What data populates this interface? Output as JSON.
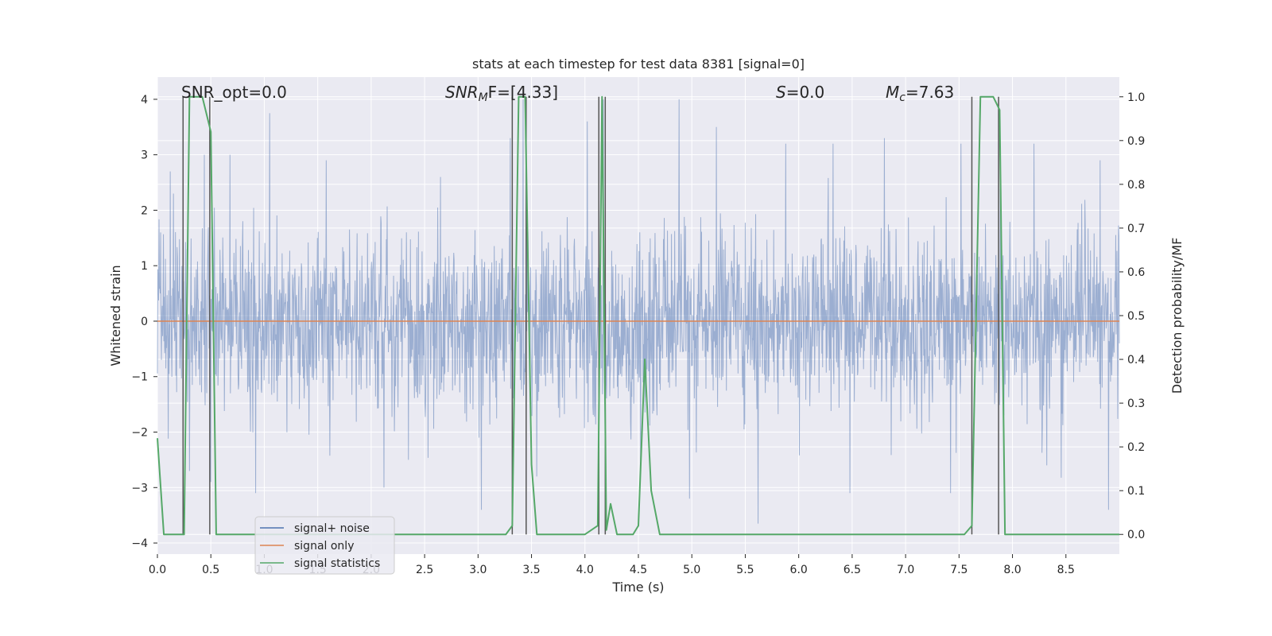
{
  "chart_data": {
    "type": "line",
    "title": "stats at each timestep for test data 8381 [signal=0]",
    "xlabel": "Time (s)",
    "ylabel": "Whitened strain",
    "y2label": "Detection probability/MF",
    "xlim": [
      0.0,
      9.0
    ],
    "ylim": [
      -4.2,
      4.4
    ],
    "y2lim": [
      -0.045,
      1.045
    ],
    "xticks": [
      "0.0",
      "0.5",
      "1.0",
      "1.5",
      "2.0",
      "2.5",
      "3.0",
      "3.5",
      "4.0",
      "4.5",
      "5.0",
      "5.5",
      "6.0",
      "6.5",
      "7.0",
      "7.5",
      "8.0",
      "8.5"
    ],
    "yticks": [
      "4",
      "3",
      "2",
      "1",
      "0",
      "−1",
      "−2",
      "−3",
      "−4"
    ],
    "y2ticks": [
      "1.0",
      "0.9",
      "0.8",
      "0.7",
      "0.6",
      "0.5",
      "0.4",
      "0.3",
      "0.2",
      "0.1",
      "0.0"
    ],
    "grid": true,
    "legend_position": "lower-left",
    "colors": {
      "background": "#eaeaf2",
      "grid": "#ffffff",
      "signal_noise": "#4c72b0",
      "signal_only": "#dd8452",
      "statistics": "#55a868",
      "vlines": "#555555"
    },
    "annotations": {
      "snr_opt": "SNR_opt=0.0",
      "snr_mf": "SNR",
      "snr_mf_sub": "M",
      "snr_mf_rest": "F=[4.33]",
      "s_name": "S",
      "s_value": "=0.0",
      "mc_name": "M",
      "mc_sub": "c",
      "mc_value": "=7.63"
    },
    "series": [
      {
        "name": "signal+ noise",
        "kind": "noise",
        "color": "#4c72b0",
        "core_std": 0.8,
        "spike_peaks": [
          {
            "x": 0.03,
            "y": 1.6
          },
          {
            "x": 0.12,
            "y": 2.7
          },
          {
            "x": 0.15,
            "y": 2.3
          },
          {
            "x": 0.44,
            "y": 3.0
          },
          {
            "x": 0.68,
            "y": 3.0
          },
          {
            "x": 1.05,
            "y": 3.75
          },
          {
            "x": 1.58,
            "y": 2.9
          },
          {
            "x": 2.65,
            "y": 2.6
          },
          {
            "x": 3.3,
            "y": 3.3
          },
          {
            "x": 3.42,
            "y": 4.0
          },
          {
            "x": 4.02,
            "y": 3.6
          },
          {
            "x": 4.17,
            "y": 4.0
          },
          {
            "x": 4.88,
            "y": 4.0
          },
          {
            "x": 5.23,
            "y": 3.5
          },
          {
            "x": 5.88,
            "y": 3.2
          },
          {
            "x": 6.32,
            "y": 3.2
          },
          {
            "x": 6.8,
            "y": 3.3
          },
          {
            "x": 7.52,
            "y": 3.2
          },
          {
            "x": 8.2,
            "y": 3.2
          },
          {
            "x": 8.82,
            "y": 2.9
          },
          {
            "x": 0.3,
            "y": -2.7
          },
          {
            "x": 0.5,
            "y": -2.9
          },
          {
            "x": 0.92,
            "y": -3.1
          },
          {
            "x": 2.12,
            "y": -3.0
          },
          {
            "x": 2.35,
            "y": -2.5
          },
          {
            "x": 3.03,
            "y": -3.4
          },
          {
            "x": 3.55,
            "y": -2.8
          },
          {
            "x": 4.52,
            "y": -2.7
          },
          {
            "x": 4.98,
            "y": -3.2
          },
          {
            "x": 5.62,
            "y": -3.65
          },
          {
            "x": 6.48,
            "y": -3.1
          },
          {
            "x": 7.42,
            "y": -3.1
          },
          {
            "x": 8.32,
            "y": -2.6
          },
          {
            "x": 8.9,
            "y": -3.4
          }
        ]
      },
      {
        "name": "signal only",
        "kind": "flat",
        "color": "#dd8452",
        "x": [
          0.0,
          9.0
        ],
        "y": [
          0.0,
          0.0
        ]
      },
      {
        "name": "signal statistics",
        "kind": "secondary",
        "color": "#55a868",
        "x": [
          0.0,
          0.06,
          0.14,
          0.25,
          0.3,
          0.42,
          0.5,
          0.55,
          1.0,
          2.0,
          3.0,
          3.26,
          3.32,
          3.38,
          3.44,
          3.5,
          3.55,
          3.6,
          4.0,
          4.12,
          4.16,
          4.2,
          4.24,
          4.3,
          4.36,
          4.45,
          4.5,
          4.56,
          4.62,
          4.7,
          5.0,
          6.0,
          7.0,
          7.55,
          7.62,
          7.7,
          7.82,
          7.88,
          7.93,
          8.5,
          9.0
        ],
        "y": [
          0.22,
          0.0,
          0.0,
          0.0,
          1.0,
          1.0,
          0.92,
          0.0,
          0.0,
          0.0,
          0.0,
          0.0,
          0.02,
          1.0,
          1.0,
          0.16,
          0.0,
          0.0,
          0.0,
          0.02,
          1.0,
          0.01,
          0.07,
          0.0,
          0.0,
          0.0,
          0.02,
          0.4,
          0.1,
          0.0,
          0.0,
          0.0,
          0.0,
          0.0,
          0.02,
          1.0,
          1.0,
          0.97,
          0.0,
          0.0,
          0.0
        ]
      }
    ],
    "vlines": [
      0.24,
      0.49,
      3.32,
      3.45,
      4.13,
      4.19,
      7.62,
      7.87
    ]
  }
}
